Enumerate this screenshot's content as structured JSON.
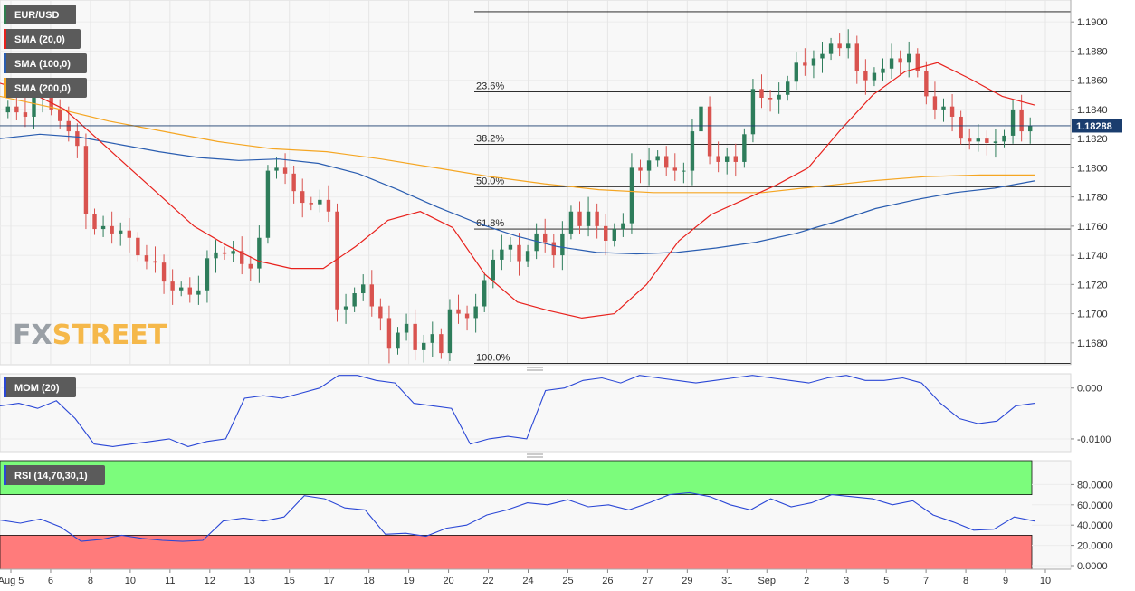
{
  "chart_data": [
    {
      "type": "candlestick",
      "symbol": "EUR/USD",
      "indicators": [
        {
          "name": "SMA (20,0)",
          "color": "#e8221d"
        },
        {
          "name": "SMA (100,0)",
          "color": "#2a5db0"
        },
        {
          "name": "SMA (200,0)",
          "color": "#f5a623"
        }
      ],
      "last_price": "1.18288",
      "ylim": [
        1.1665,
        1.1915
      ],
      "y_ticks": [
        "1.1680",
        "1.1700",
        "1.1720",
        "1.1740",
        "1.1760",
        "1.1780",
        "1.1800",
        "1.1820",
        "1.1840",
        "1.1860",
        "1.1880",
        "1.1900"
      ],
      "x_ticks": [
        "Aug 5",
        "6",
        "8",
        "10",
        "11",
        "12",
        "13",
        "15",
        "17",
        "18",
        "19",
        "20",
        "22",
        "24",
        "25",
        "26",
        "27",
        "29",
        "31",
        "Sep",
        "2",
        "3",
        "5",
        "7",
        "8",
        "9",
        "10"
      ],
      "fibonacci": [
        {
          "label": "100.0%",
          "price": 1.1666
        },
        {
          "label": "61.8%",
          "price": 1.1758
        },
        {
          "label": "50.0%",
          "price": 1.1787
        },
        {
          "label": "38.2%",
          "price": 1.1816
        },
        {
          "label": "23.6%",
          "price": 1.1852
        },
        {
          "label": "",
          "price": 1.1907
        }
      ],
      "close": [
        1.1842,
        1.1838,
        1.1835,
        1.1848,
        1.1852,
        1.184,
        1.1832,
        1.1825,
        1.1815,
        1.1768,
        1.1758,
        1.176,
        1.1755,
        1.1757,
        1.1752,
        1.174,
        1.1736,
        1.1735,
        1.1722,
        1.1716,
        1.1718,
        1.1713,
        1.1716,
        1.1738,
        1.1742,
        1.1741,
        1.1743,
        1.1734,
        1.1731,
        1.1752,
        1.1798,
        1.18,
        1.1796,
        1.1784,
        1.1776,
        1.1775,
        1.1778,
        1.177,
        1.1703,
        1.1705,
        1.1714,
        1.172,
        1.1705,
        1.1697,
        1.1676,
        1.1687,
        1.1693,
        1.1675,
        1.168,
        1.1686,
        1.1673,
        1.1703,
        1.17,
        1.1697,
        1.1705,
        1.1723,
        1.1737,
        1.1744,
        1.1747,
        1.1736,
        1.1743,
        1.1755,
        1.1749,
        1.174,
        1.1755,
        1.177,
        1.176,
        1.177,
        1.176,
        1.175,
        1.1758,
        1.1762,
        1.18,
        1.1798,
        1.1805,
        1.1808,
        1.18,
        1.1798,
        1.1798,
        1.1825,
        1.1842,
        1.1808,
        1.1804,
        1.1808,
        1.1804,
        1.1823,
        1.1854,
        1.1848,
        1.1847,
        1.185,
        1.1859,
        1.1872,
        1.187,
        1.1875,
        1.1878,
        1.1885,
        1.1882,
        1.1885,
        1.1866,
        1.186,
        1.1865,
        1.1868,
        1.1875,
        1.1872,
        1.1878,
        1.1866,
        1.1849,
        1.184,
        1.1842,
        1.1835,
        1.182,
        1.1818,
        1.182,
        1.1817,
        1.1818,
        1.1822,
        1.184,
        1.1825,
        1.1829
      ],
      "sma20": [
        1.1858,
        1.1851,
        1.184,
        1.182,
        1.18,
        1.178,
        1.176,
        1.1747,
        1.1736,
        1.1731,
        1.1731,
        1.1746,
        1.1764,
        1.177,
        1.1759,
        1.1727,
        1.1708,
        1.1702,
        1.1697,
        1.17,
        1.172,
        1.175,
        1.1768,
        1.1778,
        1.1788,
        1.18,
        1.1826,
        1.185,
        1.1866,
        1.1872,
        1.1861,
        1.1849,
        1.1843
      ],
      "sma100": [
        1.182,
        1.1823,
        1.1821,
        1.1816,
        1.1811,
        1.1807,
        1.1805,
        1.1806,
        1.1803,
        1.1796,
        1.1785,
        1.1773,
        1.1762,
        1.1753,
        1.1746,
        1.1742,
        1.1741,
        1.1742,
        1.1745,
        1.1749,
        1.1755,
        1.1763,
        1.1772,
        1.1778,
        1.1783,
        1.1786,
        1.1791
      ],
      "sma200": [
        1.1849,
        1.1841,
        1.1832,
        1.1825,
        1.1818,
        1.1813,
        1.1811,
        1.1806,
        1.18,
        1.1794,
        1.1789,
        1.1785,
        1.1783,
        1.1783,
        1.1783,
        1.1787,
        1.1791,
        1.1794,
        1.1795,
        1.1795
      ]
    },
    {
      "type": "line",
      "name": "MOM (20)",
      "ylim": [
        -0.0125,
        0.0028
      ],
      "y_ticks": [
        "0.000",
        "-0.0100"
      ],
      "values": [
        -0.0035,
        -0.003,
        -0.004,
        -0.0025,
        -0.006,
        -0.011,
        -0.0115,
        -0.011,
        -0.0105,
        -0.01,
        -0.0115,
        -0.0105,
        -0.01,
        -0.002,
        -0.0015,
        -0.002,
        -0.001,
        0.0,
        0.0025,
        0.0025,
        0.0015,
        0.001,
        -0.003,
        -0.0035,
        -0.004,
        -0.011,
        -0.01,
        -0.0095,
        -0.01,
        -0.0005,
        0.0,
        0.0015,
        0.002,
        0.001,
        0.0025,
        0.002,
        0.0015,
        0.001,
        0.0015,
        0.002,
        0.0025,
        0.002,
        0.0015,
        0.001,
        0.002,
        0.0025,
        0.0015,
        0.0015,
        0.002,
        0.001,
        -0.003,
        -0.006,
        -0.007,
        -0.0065,
        -0.0035,
        -0.003
      ]
    },
    {
      "type": "line",
      "name": "RSI (14,70,30,1)",
      "ylim": [
        0,
        100
      ],
      "y_ticks": [
        "0.0000",
        "20.0000",
        "40.0000",
        "60.0000",
        "80.0000"
      ],
      "overbought": 70,
      "oversold": 30,
      "values": [
        45,
        42,
        46,
        38,
        24,
        26,
        30,
        27,
        25,
        24,
        25,
        44,
        47,
        44,
        48,
        69,
        66,
        57,
        55,
        31,
        32,
        29,
        37,
        40,
        50,
        55,
        62,
        60,
        65,
        58,
        60,
        55,
        62,
        70,
        72,
        68,
        60,
        55,
        66,
        58,
        62,
        70,
        68,
        66,
        60,
        64,
        50,
        43,
        35,
        36,
        48,
        44
      ]
    }
  ]
}
